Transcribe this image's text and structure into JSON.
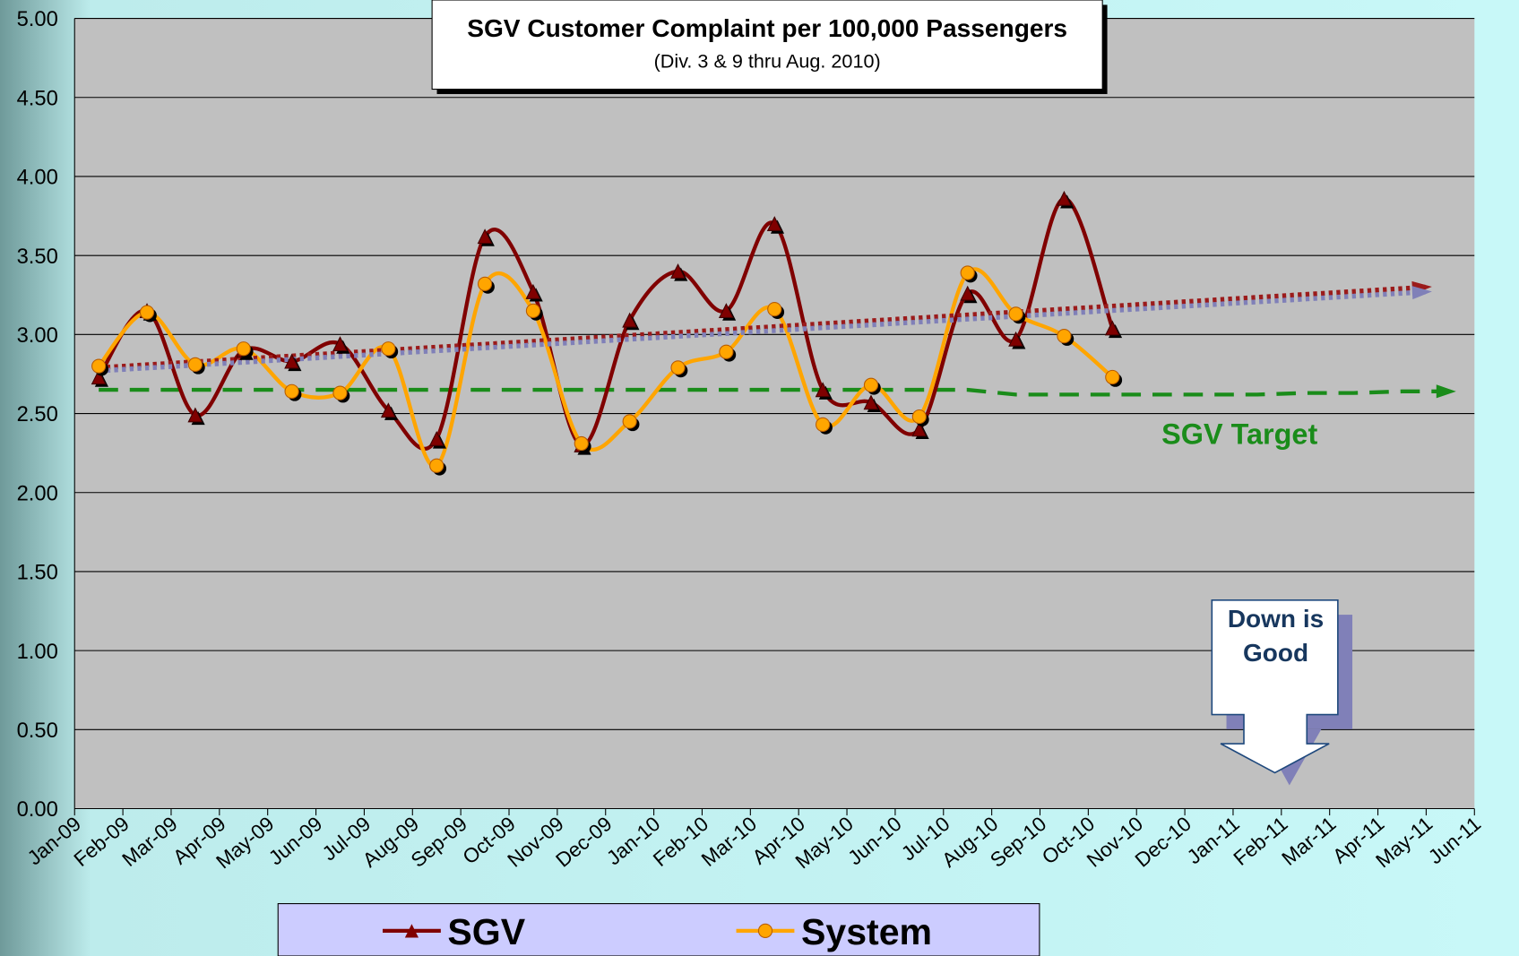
{
  "chart_data": {
    "type": "line",
    "title": "SGV Customer Complaint per 100,000 Passengers",
    "subtitle": "(Div. 3 & 9 thru Aug. 2010)",
    "categories": [
      "Jan-09",
      "Feb-09",
      "Mar-09",
      "Apr-09",
      "May-09",
      "Jun-09",
      "Jul-09",
      "Aug-09",
      "Sep-09",
      "Oct-09",
      "Nov-09",
      "Dec-09",
      "Jan-10",
      "Feb-10",
      "Mar-10",
      "Apr-10",
      "May-10",
      "Jun-10",
      "Jul-10",
      "Aug-10",
      "Sep-10",
      "Oct-10",
      "Nov-10",
      "Dec-10",
      "Jan-11",
      "Feb-11",
      "Mar-11",
      "Apr-11",
      "May-11",
      "Jun-11"
    ],
    "series": [
      {
        "name": "SGV",
        "color": "#800000",
        "marker": "triangle",
        "values": [
          2.73,
          3.15,
          2.49,
          2.9,
          2.83,
          2.94,
          2.52,
          2.34,
          3.62,
          3.27,
          2.3,
          3.09,
          3.4,
          3.15,
          3.7,
          2.65,
          2.57,
          2.4,
          3.26,
          2.97,
          3.86,
          3.04,
          null,
          null,
          null,
          null,
          null,
          null,
          null,
          null
        ]
      },
      {
        "name": "System",
        "color": "#ffa500",
        "marker": "circle",
        "values": [
          2.8,
          3.14,
          2.81,
          2.91,
          2.64,
          2.63,
          2.91,
          2.17,
          3.32,
          3.15,
          2.31,
          2.45,
          2.79,
          2.89,
          3.16,
          2.43,
          2.68,
          2.48,
          3.39,
          3.13,
          2.99,
          2.73,
          null,
          null,
          null,
          null,
          null,
          null,
          null,
          null
        ]
      }
    ],
    "trendlines": [
      {
        "color": "#9b1b1b",
        "values": [
          2.79,
          3.3
        ]
      },
      {
        "color": "#8080b8",
        "values": [
          2.77,
          3.27
        ]
      }
    ],
    "target": {
      "label": "SGV Target",
      "color": "#1a8c1a",
      "values": [
        2.65,
        2.65,
        2.65,
        2.65,
        2.65,
        2.65,
        2.65,
        2.65,
        2.65,
        2.65,
        2.65,
        2.65,
        2.65,
        2.65,
        2.65,
        2.65,
        2.65,
        2.65,
        2.65,
        2.62,
        2.62,
        2.62,
        2.62,
        2.62,
        2.62,
        2.63,
        2.63,
        2.64,
        2.64,
        null
      ]
    },
    "annotation": "Down is Good",
    "ylim": [
      0,
      5
    ],
    "yticks": [
      {
        "value": 0,
        "label": "0.00"
      },
      {
        "value": 0.5,
        "label": "0.50"
      },
      {
        "value": 1,
        "label": "1.00"
      },
      {
        "value": 1.5,
        "label": "1.50"
      },
      {
        "value": 2,
        "label": "2.00"
      },
      {
        "value": 2.5,
        "label": "2.50"
      },
      {
        "value": 3,
        "label": "3.00"
      },
      {
        "value": 3.5,
        "label": "3.50"
      },
      {
        "value": 4,
        "label": "4.00"
      },
      {
        "value": 4.5,
        "label": "4.50"
      },
      {
        "value": 5,
        "label": "5.00"
      }
    ],
    "grid": true
  }
}
